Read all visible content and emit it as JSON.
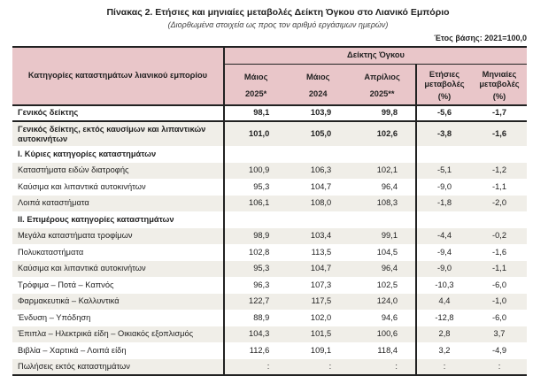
{
  "title": "Πίνακας 2. Ετήσιες και μηνιαίες μεταβολές Δείκτη Όγκου στο Λιανικό Εμπόριο",
  "subtitle": "(Διορθωμένα στοιχεία ως προς τον αριθμό εργάσιμων ημερών)",
  "base_year": "Έτος βάσης: 2021=100,0",
  "header": {
    "category": "Κατηγορίες καταστημάτων λιανικού εμπορίου",
    "group": "Δείκτης Όγκου",
    "cols": [
      {
        "l1": "Μάιος",
        "l2": "2025*"
      },
      {
        "l1": "Μάιος",
        "l2": "2024"
      },
      {
        "l1": "Απρίλιος",
        "l2": "2025**"
      },
      {
        "l1": "Ετήσιες μεταβολές",
        "l2": "(%)"
      },
      {
        "l1": "Μηνιαίες μεταβολές",
        "l2": "(%)"
      }
    ]
  },
  "rows": [
    {
      "label": "Γενικός δείκτης",
      "v": [
        "98,1",
        "103,9",
        "99,8",
        "-5,6",
        "-1,7"
      ]
    },
    {
      "label": "Γενικός δείκτης, εκτός καυσίμων και λιπαντικών αυτοκινήτων",
      "v": [
        "101,0",
        "105,0",
        "102,6",
        "-3,8",
        "-1,6"
      ]
    },
    {
      "label": "Ι. Κύριες κατηγορίες καταστημάτων",
      "v": [
        "",
        "",
        "",
        "",
        ""
      ]
    },
    {
      "label": "Καταστήματα ειδών διατροφής",
      "v": [
        "100,9",
        "106,3",
        "102,1",
        "-5,1",
        "-1,2"
      ]
    },
    {
      "label": "Καύσιμα και λιπαντικά αυτοκινήτων",
      "v": [
        "95,3",
        "104,7",
        "96,4",
        "-9,0",
        "-1,1"
      ]
    },
    {
      "label": "Λοιπά καταστήματα",
      "v": [
        "106,1",
        "108,0",
        "108,3",
        "-1,8",
        "-2,0"
      ]
    },
    {
      "label": "ΙΙ. Επιμέρους κατηγορίες καταστημάτων",
      "v": [
        "",
        "",
        "",
        "",
        ""
      ]
    },
    {
      "label": "Μεγάλα καταστήματα τροφίμων",
      "v": [
        "98,9",
        "103,4",
        "99,1",
        "-4,4",
        "-0,2"
      ]
    },
    {
      "label": "Πολυκαταστήματα",
      "v": [
        "102,8",
        "113,5",
        "104,5",
        "-9,4",
        "-1,6"
      ]
    },
    {
      "label": "Καύσιμα και λιπαντικά αυτοκινήτων",
      "v": [
        "95,3",
        "104,7",
        "96,4",
        "-9,0",
        "-1,1"
      ]
    },
    {
      "label": "Τρόφιμα – Ποτά – Καπνός",
      "v": [
        "96,3",
        "107,3",
        "102,5",
        "-10,3",
        "-6,0"
      ]
    },
    {
      "label": "Φαρμακευτικά – Καλλυντικά",
      "v": [
        "122,7",
        "117,5",
        "124,0",
        "4,4",
        "-1,0"
      ]
    },
    {
      "label": "Ένδυση – Υπόδηση",
      "v": [
        "88,9",
        "102,0",
        "94,6",
        "-12,8",
        "-6,0"
      ]
    },
    {
      "label": "Έπιπλα – Ηλεκτρικά είδη – Οικιακός εξοπλισμός",
      "v": [
        "104,3",
        "101,5",
        "100,6",
        "2,8",
        "3,7"
      ]
    },
    {
      "label": "Βιβλία – Χαρτικά – Λοιπά είδη",
      "v": [
        "112,6",
        "109,1",
        "118,4",
        "3,2",
        "-4,9"
      ]
    },
    {
      "label": "Πωλήσεις εκτός καταστημάτων",
      "v": [
        ":",
        ":",
        ":",
        ":",
        ":"
      ]
    }
  ]
}
